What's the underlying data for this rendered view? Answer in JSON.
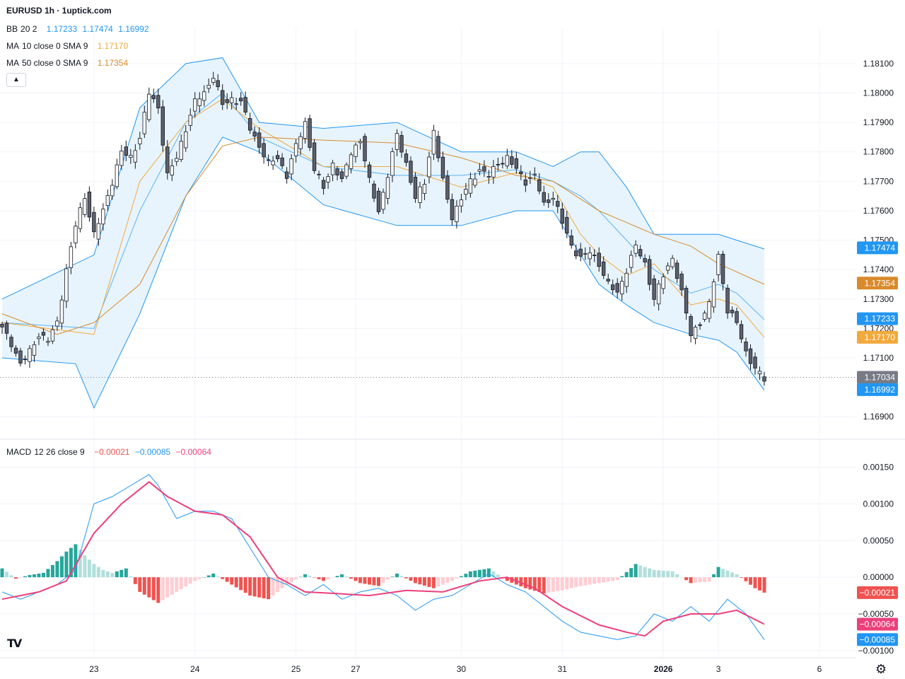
{
  "header": {
    "symbol_title": "EURUSD 1h · 1uptick.com",
    "bb": {
      "label": "BB",
      "params": "20 2",
      "basis": "1.17233",
      "upper": "1.17474",
      "lower": "1.16992"
    },
    "ma10": {
      "label": "MA",
      "params": "10 close 0 SMA 9",
      "value": "1.17170"
    },
    "ma50": {
      "label": "MA",
      "params": "50 close 0 SMA 9",
      "value": "1.17354"
    },
    "macd": {
      "label": "MACD",
      "params": "12 26 close 9",
      "hist": "−0.00021",
      "macd": "−0.00085",
      "signal": "−0.00064"
    }
  },
  "colors": {
    "up": "#26a69a",
    "down": "#ef5350",
    "candle_body_up": "#ffffff",
    "candle_body_down": "#5d606b",
    "bb_band": "#2196f3",
    "bb_fill": "#e3f2fd",
    "ma10": "#f2a93b",
    "ma50": "#d98a2b",
    "macd_line": "#2196f3",
    "signal_line": "#ec407a",
    "last_price": "#787b86"
  },
  "icons": {
    "logo": "tradingview-logo-icon",
    "settings": "gear-icon",
    "collapse": "chevron-up-icon"
  },
  "chart_data": [
    {
      "type": "candlestick",
      "series_labels": [
        "BB 20 2",
        "MA 10 close 0 SMA 9",
        "MA 50 close 0 SMA 9"
      ],
      "y_range": [
        1.1685,
        1.1822
      ],
      "y_ticks": [
        "1.18100",
        "1.18000",
        "1.17900",
        "1.17800",
        "1.17700",
        "1.17600",
        "1.17500",
        "1.17400",
        "1.17300",
        "1.17200",
        "1.17100",
        "1.16900"
      ],
      "x_ticks": [
        "23",
        "24",
        "25",
        "27",
        "30",
        "31",
        "2026",
        "3",
        "6"
      ],
      "price_labels": [
        {
          "text": "1.17474",
          "value": 1.17474,
          "kind": "bb"
        },
        {
          "text": "1.17354",
          "value": 1.17354,
          "kind": "ma50"
        },
        {
          "text": "1.17233",
          "value": 1.17233,
          "kind": "bb"
        },
        {
          "text": "1.17170",
          "value": 1.1717,
          "kind": "ma10"
        },
        {
          "text": "1.17034",
          "value": 1.17034,
          "kind": "last"
        },
        {
          "text": "1.16992",
          "value": 1.16992,
          "kind": "bb"
        }
      ],
      "last_price": 1.17034,
      "close_path": [
        [
          0,
          1.172
        ],
        [
          2,
          1.1715
        ],
        [
          4,
          1.1708
        ],
        [
          6,
          1.1712
        ],
        [
          8,
          1.1718
        ],
        [
          10,
          1.1716
        ],
        [
          12,
          1.1722
        ],
        [
          14,
          1.174
        ],
        [
          16,
          1.1755
        ],
        [
          18,
          1.1765
        ],
        [
          20,
          1.1752
        ],
        [
          22,
          1.176
        ],
        [
          24,
          1.177
        ],
        [
          26,
          1.178
        ],
        [
          28,
          1.1778
        ],
        [
          30,
          1.1785
        ],
        [
          32,
          1.18
        ],
        [
          34,
          1.1795
        ],
        [
          36,
          1.1772
        ],
        [
          38,
          1.1778
        ],
        [
          40,
          1.1788
        ],
        [
          42,
          1.1797
        ],
        [
          44,
          1.18
        ],
        [
          46,
          1.1806
        ],
        [
          48,
          1.1796
        ],
        [
          50,
          1.1798
        ],
        [
          52,
          1.1797
        ],
        [
          54,
          1.1788
        ],
        [
          56,
          1.1782
        ],
        [
          58,
          1.1776
        ],
        [
          60,
          1.1778
        ],
        [
          62,
          1.1772
        ],
        [
          64,
          1.1782
        ],
        [
          66,
          1.179
        ],
        [
          68,
          1.1774
        ],
        [
          70,
          1.1768
        ],
        [
          72,
          1.1776
        ],
        [
          74,
          1.177
        ],
        [
          76,
          1.178
        ],
        [
          78,
          1.1784
        ],
        [
          80,
          1.177
        ],
        [
          82,
          1.176
        ],
        [
          84,
          1.1772
        ],
        [
          86,
          1.1786
        ],
        [
          88,
          1.1776
        ],
        [
          90,
          1.1764
        ],
        [
          92,
          1.177
        ],
        [
          94,
          1.1787
        ],
        [
          96,
          1.177
        ],
        [
          98,
          1.1758
        ],
        [
          100,
          1.1764
        ],
        [
          102,
          1.177
        ],
        [
          104,
          1.1774
        ],
        [
          106,
          1.1772
        ],
        [
          108,
          1.1776
        ],
        [
          110,
          1.1778
        ],
        [
          112,
          1.1774
        ],
        [
          114,
          1.177
        ],
        [
          116,
          1.1772
        ],
        [
          118,
          1.1762
        ],
        [
          120,
          1.1765
        ],
        [
          122,
          1.1756
        ],
        [
          124,
          1.1748
        ],
        [
          126,
          1.1744
        ],
        [
          128,
          1.1746
        ],
        [
          130,
          1.1742
        ],
        [
          132,
          1.1735
        ],
        [
          134,
          1.1732
        ],
        [
          136,
          1.174
        ],
        [
          138,
          1.1748
        ],
        [
          140,
          1.1742
        ],
        [
          142,
          1.173
        ],
        [
          144,
          1.1738
        ],
        [
          146,
          1.1744
        ],
        [
          148,
          1.1732
        ],
        [
          150,
          1.1718
        ],
        [
          152,
          1.1722
        ],
        [
          154,
          1.1728
        ],
        [
          156,
          1.1745
        ],
        [
          158,
          1.1726
        ],
        [
          160,
          1.1722
        ],
        [
          162,
          1.1712
        ],
        [
          164,
          1.1706
        ],
        [
          166,
          1.1703
        ]
      ],
      "bb_upper": [
        [
          0,
          1.173
        ],
        [
          20,
          1.1745
        ],
        [
          30,
          1.1795
        ],
        [
          40,
          1.181
        ],
        [
          48,
          1.1812
        ],
        [
          56,
          1.179
        ],
        [
          70,
          1.1788
        ],
        [
          86,
          1.179
        ],
        [
          100,
          1.178
        ],
        [
          112,
          1.178
        ],
        [
          120,
          1.1775
        ],
        [
          126,
          1.178
        ],
        [
          130,
          1.178
        ],
        [
          136,
          1.1768
        ],
        [
          142,
          1.1752
        ],
        [
          150,
          1.1752
        ],
        [
          156,
          1.1752
        ],
        [
          160,
          1.175
        ],
        [
          166,
          1.1747
        ]
      ],
      "bb_basis": [
        [
          0,
          1.1722
        ],
        [
          20,
          1.172
        ],
        [
          30,
          1.176
        ],
        [
          40,
          1.179
        ],
        [
          48,
          1.18
        ],
        [
          56,
          1.1785
        ],
        [
          70,
          1.1775
        ],
        [
          86,
          1.1772
        ],
        [
          100,
          1.1772
        ],
        [
          112,
          1.1774
        ],
        [
          120,
          1.177
        ],
        [
          126,
          1.1765
        ],
        [
          130,
          1.176
        ],
        [
          136,
          1.175
        ],
        [
          142,
          1.174
        ],
        [
          150,
          1.1732
        ],
        [
          156,
          1.1735
        ],
        [
          160,
          1.1732
        ],
        [
          166,
          1.1723
        ]
      ],
      "bb_lower": [
        [
          0,
          1.171
        ],
        [
          16,
          1.1708
        ],
        [
          20,
          1.1693
        ],
        [
          30,
          1.1725
        ],
        [
          40,
          1.1765
        ],
        [
          48,
          1.1785
        ],
        [
          56,
          1.178
        ],
        [
          70,
          1.1762
        ],
        [
          86,
          1.1755
        ],
        [
          100,
          1.1755
        ],
        [
          112,
          1.176
        ],
        [
          120,
          1.176
        ],
        [
          126,
          1.1745
        ],
        [
          130,
          1.1735
        ],
        [
          136,
          1.1728
        ],
        [
          142,
          1.1722
        ],
        [
          150,
          1.1718
        ],
        [
          156,
          1.1716
        ],
        [
          160,
          1.1712
        ],
        [
          166,
          1.1699
        ]
      ],
      "ma10": [
        [
          0,
          1.1722
        ],
        [
          20,
          1.1718
        ],
        [
          30,
          1.177
        ],
        [
          40,
          1.179
        ],
        [
          48,
          1.1798
        ],
        [
          56,
          1.1788
        ],
        [
          70,
          1.1775
        ],
        [
          86,
          1.1775
        ],
        [
          100,
          1.1768
        ],
        [
          112,
          1.1773
        ],
        [
          120,
          1.1768
        ],
        [
          126,
          1.1752
        ],
        [
          130,
          1.1745
        ],
        [
          136,
          1.1738
        ],
        [
          142,
          1.1742
        ],
        [
          150,
          1.1728
        ],
        [
          156,
          1.173
        ],
        [
          160,
          1.1728
        ],
        [
          166,
          1.1717
        ]
      ],
      "ma50": [
        [
          0,
          1.1725
        ],
        [
          12,
          1.1718
        ],
        [
          20,
          1.1722
        ],
        [
          30,
          1.1735
        ],
        [
          40,
          1.1765
        ],
        [
          48,
          1.1782
        ],
        [
          56,
          1.1785
        ],
        [
          70,
          1.1784
        ],
        [
          86,
          1.1783
        ],
        [
          100,
          1.1778
        ],
        [
          112,
          1.1772
        ],
        [
          120,
          1.177
        ],
        [
          126,
          1.1764
        ],
        [
          130,
          1.176
        ],
        [
          136,
          1.1756
        ],
        [
          142,
          1.1752
        ],
        [
          150,
          1.1748
        ],
        [
          156,
          1.1742
        ],
        [
          166,
          1.1735
        ]
      ]
    },
    {
      "type": "macd",
      "series_labels": [
        "MACD 12 26 close 9"
      ],
      "y_range": [
        -0.00105,
        0.00165
      ],
      "y_ticks": [
        "0.00150",
        "0.00100",
        "0.00050",
        "0.00000",
        "−0.00050",
        "−0.00100"
      ],
      "value_labels": [
        {
          "text": "−0.00021",
          "value": -0.00021,
          "kind": "hist"
        },
        {
          "text": "−0.00064",
          "value": -0.00064,
          "kind": "signal"
        },
        {
          "text": "−0.00085",
          "value": -0.00085,
          "kind": "macd"
        }
      ],
      "macd": [
        [
          0,
          -0.0002
        ],
        [
          4,
          -0.0003
        ],
        [
          8,
          -0.0002
        ],
        [
          12,
          -0.0001
        ],
        [
          16,
          0.0001
        ],
        [
          20,
          0.001
        ],
        [
          24,
          0.0011
        ],
        [
          28,
          0.00125
        ],
        [
          32,
          0.0014
        ],
        [
          34,
          0.00125
        ],
        [
          38,
          0.0008
        ],
        [
          42,
          0.0009
        ],
        [
          46,
          0.0009
        ],
        [
          50,
          0.0008
        ],
        [
          54,
          0.0004
        ],
        [
          58,
          0.0
        ],
        [
          62,
          -0.0001
        ],
        [
          66,
          -0.00025
        ],
        [
          70,
          -0.0001
        ],
        [
          74,
          -0.0003
        ],
        [
          78,
          -0.0002
        ],
        [
          82,
          -0.00015
        ],
        [
          86,
          -0.00025
        ],
        [
          90,
          -0.00045
        ],
        [
          94,
          -0.0003
        ],
        [
          98,
          -0.00025
        ],
        [
          102,
          -0.0001
        ],
        [
          106,
          5e-05
        ],
        [
          110,
          -0.0001
        ],
        [
          114,
          -0.0002
        ],
        [
          118,
          -0.0004
        ],
        [
          122,
          -0.0006
        ],
        [
          126,
          -0.00075
        ],
        [
          130,
          -0.0008
        ],
        [
          134,
          -0.00085
        ],
        [
          138,
          -0.0008
        ],
        [
          142,
          -0.0005
        ],
        [
          146,
          -0.0006
        ],
        [
          150,
          -0.0004
        ],
        [
          154,
          -0.0006
        ],
        [
          158,
          -0.0003
        ],
        [
          162,
          -0.0005
        ],
        [
          166,
          -0.00085
        ]
      ],
      "signal": [
        [
          0,
          -0.0003
        ],
        [
          8,
          -0.0002
        ],
        [
          14,
          -5e-05
        ],
        [
          20,
          0.0006
        ],
        [
          26,
          0.001
        ],
        [
          32,
          0.0013
        ],
        [
          36,
          0.0011
        ],
        [
          42,
          0.0009
        ],
        [
          48,
          0.00085
        ],
        [
          54,
          0.00055
        ],
        [
          60,
          0.0
        ],
        [
          66,
          -0.0002
        ],
        [
          72,
          -0.00022
        ],
        [
          80,
          -0.00025
        ],
        [
          88,
          -0.00018
        ],
        [
          96,
          -0.0002
        ],
        [
          104,
          -5e-05
        ],
        [
          110,
          0.0
        ],
        [
          116,
          -0.00015
        ],
        [
          122,
          -0.0004
        ],
        [
          130,
          -0.00065
        ],
        [
          136,
          -0.00075
        ],
        [
          140,
          -0.0008
        ],
        [
          144,
          -0.0006
        ],
        [
          150,
          -0.0005
        ],
        [
          156,
          -0.0005
        ],
        [
          160,
          -0.00045
        ],
        [
          166,
          -0.00064
        ]
      ],
      "histogram": [
        [
          0,
          0.00012
        ],
        [
          3,
          -2e-05
        ],
        [
          6,
          3e-05
        ],
        [
          9,
          6e-05
        ],
        [
          12,
          0.00022
        ],
        [
          14,
          0.00035
        ],
        [
          16,
          0.00045
        ],
        [
          18,
          0.0003
        ],
        [
          20,
          0.00018
        ],
        [
          22,
          0.0001
        ],
        [
          24,
          6e-05
        ],
        [
          27,
          0.00012
        ],
        [
          30,
          -0.0002
        ],
        [
          34,
          -0.00035
        ],
        [
          38,
          -0.0002
        ],
        [
          42,
          -5e-05
        ],
        [
          46,
          5e-05
        ],
        [
          50,
          -0.0001
        ],
        [
          54,
          -0.00025
        ],
        [
          58,
          -0.0003
        ],
        [
          62,
          -0.0001
        ],
        [
          66,
          4e-05
        ],
        [
          70,
          -5e-05
        ],
        [
          74,
          4e-05
        ],
        [
          78,
          -8e-05
        ],
        [
          82,
          -0.00012
        ],
        [
          86,
          5e-05
        ],
        [
          90,
          -8e-05
        ],
        [
          94,
          -0.00015
        ],
        [
          98,
          -5e-05
        ],
        [
          102,
          8e-05
        ],
        [
          106,
          0.00012
        ],
        [
          110,
          -5e-05
        ],
        [
          114,
          -0.00015
        ],
        [
          118,
          -0.00022
        ],
        [
          122,
          -0.00018
        ],
        [
          126,
          -0.00012
        ],
        [
          130,
          -8e-05
        ],
        [
          134,
          -4e-05
        ],
        [
          138,
          0.00018
        ],
        [
          142,
          0.0001
        ],
        [
          146,
          8e-05
        ],
        [
          150,
          -8e-05
        ],
        [
          154,
          -6e-05
        ],
        [
          156,
          0.00014
        ],
        [
          160,
          4e-05
        ],
        [
          164,
          -0.00015
        ],
        [
          166,
          -0.00021
        ]
      ]
    }
  ]
}
